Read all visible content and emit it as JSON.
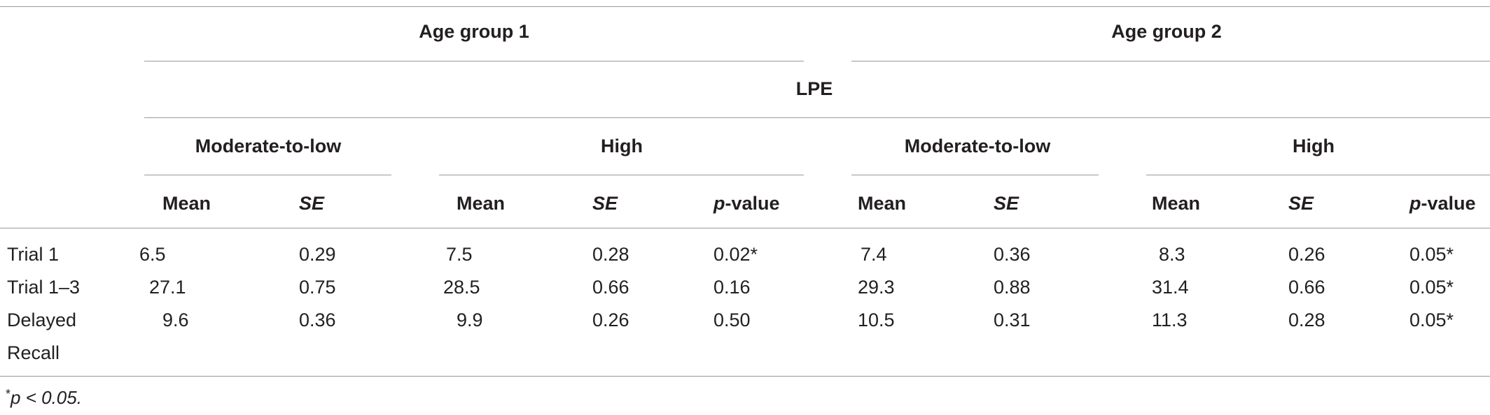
{
  "table": {
    "group_headers": [
      "Age group 1",
      "Age group 2"
    ],
    "spanner": "LPE",
    "level_headers": [
      "Moderate-to-low",
      "High",
      "Moderate-to-low",
      "High"
    ],
    "column_headers": [
      "Mean",
      "SE",
      "Mean",
      "SE",
      "p-value",
      "Mean",
      "SE",
      "Mean",
      "SE",
      "p-value"
    ],
    "rows": [
      {
        "label": "Trial 1",
        "label_line2": "",
        "values": [
          "6.5",
          "0.29",
          "7.5",
          "0.28",
          "0.02*",
          "7.4",
          "0.36",
          "8.3",
          "0.26",
          "0.05*"
        ]
      },
      {
        "label": "Trial 1–3",
        "label_line2": "",
        "values": [
          "27.1",
          "0.75",
          "28.5",
          "0.66",
          "0.16",
          "29.3",
          "0.88",
          "31.4",
          "0.66",
          "0.05*"
        ]
      },
      {
        "label": "Delayed",
        "label_line2": "Recall",
        "values": [
          "9.6",
          "0.36",
          "9.9",
          "0.26",
          "0.50",
          "10.5",
          "0.31",
          "11.3",
          "0.28",
          "0.05*"
        ]
      }
    ],
    "footnote_marker": "*",
    "footnote_text": "p < 0.05."
  }
}
